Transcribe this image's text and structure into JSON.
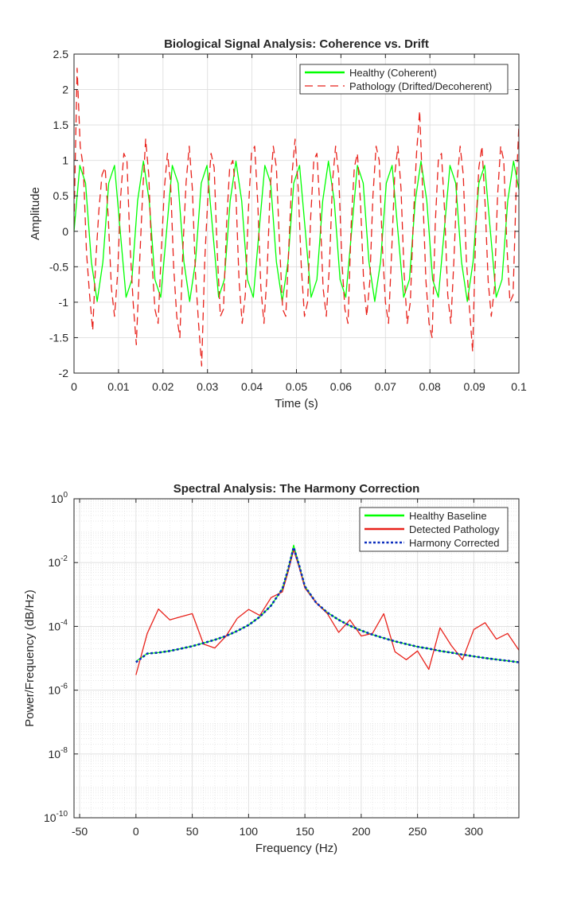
{
  "chart_data": [
    {
      "type": "line",
      "title": "Biological Signal Analysis: Coherence vs. Drift",
      "xlabel": "Time (s)",
      "ylabel": "Amplitude",
      "xlim": [
        0,
        0.1
      ],
      "ylim": [
        -2,
        2.5
      ],
      "xticks": [
        0,
        0.01,
        0.02,
        0.03,
        0.04,
        0.05,
        0.06,
        0.07,
        0.08,
        0.09,
        0.1
      ],
      "xtick_labels": [
        "0",
        "0.01",
        "0.02",
        "0.03",
        "0.04",
        "0.05",
        "0.06",
        "0.07",
        "0.08",
        "0.09",
        "0.1"
      ],
      "yticks": [
        -2,
        -1.5,
        -1,
        -0.5,
        0,
        0.5,
        1,
        1.5,
        2,
        2.5
      ],
      "ytick_labels": [
        "-2",
        "-1.5",
        "-1",
        "-0.5",
        "0",
        "0.5",
        "1",
        "1.5",
        "2",
        "2.5"
      ],
      "grid": true,
      "legend_position": "top-right",
      "series": [
        {
          "name": "Healthy (Coherent)",
          "color": "#00ff00",
          "style": "solid",
          "x": [
            0,
            0.0013,
            0.0026,
            0.0039,
            0.0052,
            0.0065,
            0.0078,
            0.0091,
            0.0104,
            0.0117,
            0.013,
            0.0143,
            0.0156,
            0.0169,
            0.0182,
            0.0195,
            0.0208,
            0.0221,
            0.0234,
            0.0247,
            0.026,
            0.0273,
            0.0286,
            0.0299,
            0.0312,
            0.0325,
            0.0338,
            0.0351,
            0.0364,
            0.0377,
            0.039,
            0.0403,
            0.0416,
            0.0429,
            0.0442,
            0.0455,
            0.0468,
            0.0481,
            0.0494,
            0.0507,
            0.052,
            0.0533,
            0.0546,
            0.0559,
            0.0572,
            0.0585,
            0.0598,
            0.0611,
            0.0624,
            0.0637,
            0.065,
            0.0663,
            0.0676,
            0.0689,
            0.0702,
            0.0715,
            0.0728,
            0.0741,
            0.0754,
            0.0767,
            0.078,
            0.0793,
            0.0806,
            0.0819,
            0.0832,
            0.0845,
            0.0858,
            0.0871,
            0.0884,
            0.0897,
            0.091,
            0.0923,
            0.0936,
            0.0949,
            0.0962,
            0.0975,
            0.0988,
            0.1
          ],
          "y": [
            0,
            0.93,
            0.68,
            -0.43,
            -0.99,
            -0.43,
            0.68,
            0.93,
            0,
            -0.93,
            -0.68,
            0.43,
            0.99,
            0.43,
            -0.68,
            -0.93,
            0,
            0.93,
            0.68,
            -0.43,
            -0.99,
            -0.43,
            0.68,
            0.93,
            0,
            -0.93,
            -0.68,
            0.43,
            0.99,
            0.43,
            -0.68,
            -0.93,
            0,
            0.93,
            0.68,
            -0.43,
            -0.99,
            -0.43,
            0.68,
            0.93,
            0,
            -0.93,
            -0.68,
            0.43,
            0.99,
            0.43,
            -0.68,
            -0.93,
            0,
            0.93,
            0.68,
            -0.43,
            -0.99,
            -0.43,
            0.68,
            0.93,
            0,
            -0.93,
            -0.68,
            0.43,
            0.99,
            0.43,
            -0.68,
            -0.93,
            0,
            0.93,
            0.68,
            -0.43,
            -0.99,
            -0.43,
            0.68,
            0.93,
            0,
            -0.93,
            -0.68,
            0.43,
            0.99,
            0.59
          ]
        },
        {
          "name": "Pathology (Drifted/Decoherent)",
          "color": "#e8221b",
          "style": "dashed",
          "x": [
            0,
            0.0007,
            0.0014,
            0.0021,
            0.0028,
            0.0035,
            0.0042,
            0.0049,
            0.0056,
            0.0063,
            0.007,
            0.0077,
            0.0084,
            0.0091,
            0.0098,
            0.0105,
            0.0112,
            0.0119,
            0.0126,
            0.0133,
            0.014,
            0.0147,
            0.0154,
            0.0161,
            0.0168,
            0.0175,
            0.0182,
            0.0189,
            0.0196,
            0.0203,
            0.021,
            0.0217,
            0.0224,
            0.0231,
            0.0238,
            0.0245,
            0.0252,
            0.0259,
            0.0266,
            0.0273,
            0.028,
            0.0287,
            0.0294,
            0.0301,
            0.0308,
            0.0315,
            0.0322,
            0.0329,
            0.0336,
            0.0343,
            0.035,
            0.0357,
            0.0364,
            0.0371,
            0.0378,
            0.0385,
            0.0392,
            0.0399,
            0.0406,
            0.0413,
            0.042,
            0.0427,
            0.0434,
            0.0441,
            0.0448,
            0.0455,
            0.0462,
            0.0469,
            0.0476,
            0.0483,
            0.049,
            0.0497,
            0.0504,
            0.0511,
            0.0518,
            0.0525,
            0.0532,
            0.0539,
            0.0546,
            0.0553,
            0.056,
            0.0567,
            0.0574,
            0.0581,
            0.0588,
            0.0595,
            0.0602,
            0.0609,
            0.0616,
            0.0623,
            0.063,
            0.0637,
            0.0644,
            0.0651,
            0.0658,
            0.0665,
            0.0672,
            0.0679,
            0.0686,
            0.0693,
            0.07,
            0.0707,
            0.0714,
            0.0721,
            0.0728,
            0.0735,
            0.0742,
            0.0749,
            0.0756,
            0.0763,
            0.077,
            0.0777,
            0.0784,
            0.0791,
            0.0798,
            0.0805,
            0.0812,
            0.0819,
            0.0826,
            0.0833,
            0.084,
            0.0847,
            0.0854,
            0.0861,
            0.0868,
            0.0875,
            0.0882,
            0.0889,
            0.0896,
            0.0903,
            0.091,
            0.0917,
            0.0924,
            0.0931,
            0.0938,
            0.0945,
            0.0952,
            0.0959,
            0.0966,
            0.0973,
            0.098,
            0.0987,
            0.0994,
            0.1
          ],
          "y": [
            0.1,
            2.3,
            1.2,
            0.9,
            -0.3,
            -0.9,
            -1.4,
            -0.4,
            0.3,
            0.8,
            0.9,
            0.2,
            -0.8,
            -1.2,
            -0.6,
            0.5,
            1.1,
            1.0,
            -0.2,
            -1.0,
            -1.6,
            -0.5,
            0.5,
            1.3,
            0.8,
            -0.4,
            -1.1,
            -1.3,
            -0.3,
            0.6,
            1.1,
            0.7,
            -0.5,
            -1.2,
            -1.5,
            -0.2,
            0.7,
            1.2,
            0.6,
            -0.6,
            -1.3,
            -1.9,
            -0.4,
            0.5,
            1.1,
            0.9,
            -0.3,
            -1.2,
            -1.1,
            0.1,
            0.9,
            1.0,
            0.5,
            -0.7,
            -1.3,
            -0.9,
            0.3,
            1.1,
            1.2,
            0.4,
            -0.8,
            -1.3,
            -0.6,
            0.6,
            1.2,
            0.9,
            -0.2,
            -1.1,
            -1.2,
            -0.2,
            0.8,
            1.3,
            0.6,
            -0.5,
            -1.2,
            -1.0,
            0.2,
            1.0,
            1.1,
            0.3,
            -0.8,
            -1.2,
            -0.5,
            0.7,
            1.2,
            0.8,
            -0.4,
            -1.1,
            -1.3,
            0.1,
            0.9,
            1.1,
            0.4,
            -0.7,
            -1.2,
            -0.7,
            0.5,
            1.2,
            1.0,
            -0.2,
            -1.0,
            -1.3,
            -0.3,
            0.8,
            1.2,
            0.6,
            -0.6,
            -1.3,
            -1.0,
            0.2,
            1.1,
            1.7,
            0.5,
            -0.7,
            -1.3,
            -1.5,
            0.1,
            1.0,
            1.1,
            0.3,
            -0.9,
            -1.3,
            -0.4,
            0.7,
            1.2,
            0.8,
            -0.4,
            -1.1,
            -1.7,
            0.0,
            0.9,
            1.2,
            0.4,
            -0.7,
            -1.2,
            -0.8,
            0.5,
            1.2,
            1.0,
            -0.2,
            -1.0,
            -0.9,
            0.6,
            1.5
          ]
        }
      ]
    },
    {
      "type": "line",
      "title": "Spectral Analysis: The Harmony Correction",
      "xlabel": "Frequency (Hz)",
      "ylabel": "Power/Frequency (dB/Hz)",
      "xlim": [
        -55,
        340
      ],
      "ylim": [
        1e-10,
        1
      ],
      "yscale": "log",
      "xticks": [
        -50,
        0,
        50,
        100,
        150,
        200,
        250,
        300
      ],
      "xtick_labels": [
        "-50",
        "0",
        "50",
        "100",
        "150",
        "200",
        "250",
        "300"
      ],
      "yticks": [
        1e-10,
        1e-08,
        1e-06,
        0.0001,
        0.01,
        1
      ],
      "ytick_labels": [
        {
          "base": "10",
          "exp": "-10"
        },
        {
          "base": "10",
          "exp": "-8"
        },
        {
          "base": "10",
          "exp": "-6"
        },
        {
          "base": "10",
          "exp": "-4"
        },
        {
          "base": "10",
          "exp": "-2"
        },
        {
          "base": "10",
          "exp": "0"
        }
      ],
      "grid": true,
      "minor_grid": true,
      "legend_position": "top-right",
      "series": [
        {
          "name": "Healthy Baseline",
          "color": "#00ff00",
          "style": "solid",
          "x": [
            0,
            10,
            20,
            30,
            40,
            50,
            60,
            70,
            80,
            90,
            100,
            110,
            120,
            130,
            135,
            140,
            145,
            150,
            160,
            170,
            180,
            190,
            200,
            210,
            220,
            230,
            240,
            250,
            260,
            270,
            280,
            290,
            300,
            310,
            320,
            330,
            340
          ],
          "y": [
            8e-06,
            1.4e-05,
            1.5e-05,
            1.7e-05,
            2e-05,
            2.4e-05,
            3e-05,
            3.8e-05,
            5e-05,
            7.2e-05,
            0.00011,
            0.0002,
            0.00045,
            0.0015,
            0.006,
            0.035,
            0.008,
            0.0018,
            0.00055,
            0.00027,
            0.00016,
            0.000105,
            7.4e-05,
            5.5e-05,
            4.3e-05,
            3.4e-05,
            2.8e-05,
            2.3e-05,
            2e-05,
            1.7e-05,
            1.5e-05,
            1.3e-05,
            1.15e-05,
            1.02e-05,
            9.2e-06,
            8.3e-06,
            7.5e-06
          ]
        },
        {
          "name": "Detected Pathology",
          "color": "#e8221b",
          "style": "solid",
          "x": [
            0,
            10,
            20,
            30,
            40,
            50,
            60,
            70,
            80,
            90,
            100,
            110,
            120,
            130,
            135,
            140,
            145,
            150,
            160,
            170,
            180,
            190,
            200,
            210,
            220,
            230,
            240,
            250,
            260,
            270,
            280,
            290,
            300,
            310,
            320,
            330,
            340
          ],
          "y": [
            3e-06,
            6e-05,
            0.00035,
            0.00016,
            0.0002,
            0.00025,
            2.8e-05,
            2.1e-05,
            5e-05,
            0.00018,
            0.00034,
            0.00022,
            0.0008,
            0.0012,
            0.005,
            0.025,
            0.007,
            0.0016,
            0.00055,
            0.00025,
            6.5e-05,
            0.00016,
            5e-05,
            6e-05,
            0.00025,
            1.6e-05,
            9e-06,
            1.7e-05,
            4.5e-06,
            9e-05,
            2.5e-05,
            9e-06,
            8e-05,
            0.00013,
            4e-05,
            6e-05,
            1.8e-05
          ]
        },
        {
          "name": "Harmony Corrected",
          "color": "#0b2dbd",
          "style": "dotted",
          "x": [
            0,
            10,
            20,
            30,
            40,
            50,
            60,
            70,
            80,
            90,
            100,
            110,
            120,
            130,
            135,
            140,
            145,
            150,
            160,
            170,
            180,
            190,
            200,
            210,
            220,
            230,
            240,
            250,
            260,
            270,
            280,
            290,
            300,
            310,
            320,
            330,
            340
          ],
          "y": [
            7.5e-06,
            1.4e-05,
            1.5e-05,
            1.7e-05,
            2e-05,
            2.4e-05,
            3e-05,
            3.8e-05,
            5e-05,
            7.2e-05,
            0.00011,
            0.0002,
            0.00045,
            0.0015,
            0.006,
            0.03,
            0.008,
            0.0018,
            0.00055,
            0.00027,
            0.00016,
            0.000105,
            7.4e-05,
            5.5e-05,
            4.3e-05,
            3.4e-05,
            2.8e-05,
            2.3e-05,
            2e-05,
            1.7e-05,
            1.5e-05,
            1.3e-05,
            1.15e-05,
            1.02e-05,
            9.2e-06,
            8.3e-06,
            7.5e-06
          ]
        }
      ]
    }
  ]
}
